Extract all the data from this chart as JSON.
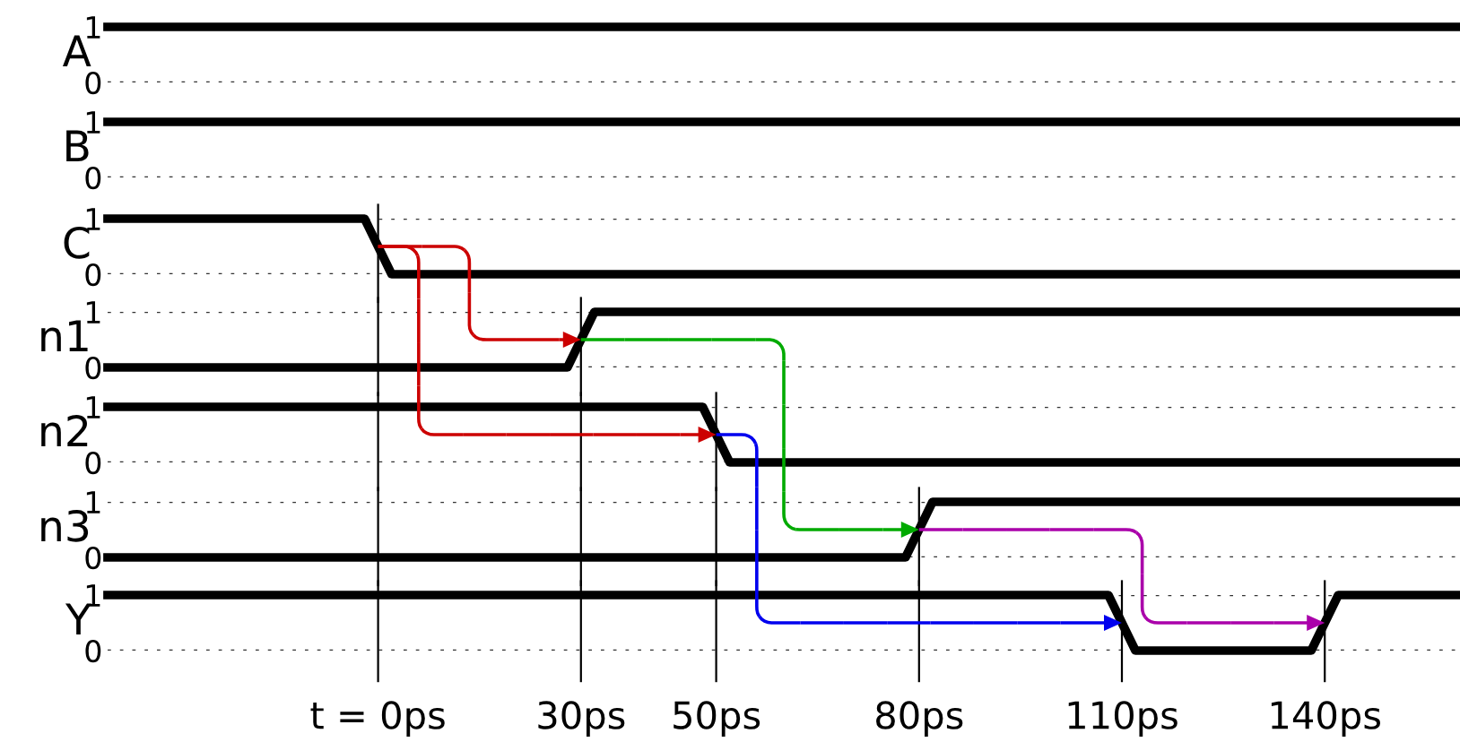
{
  "chart_data": [
    {
      "type": "line",
      "ylabel": "A",
      "x": [
        -40,
        160
      ],
      "series": [
        {
          "color": "#000000",
          "values": [
            1,
            1
          ]
        }
      ],
      "xlim": [
        -40,
        160
      ],
      "ylim": [
        0,
        1
      ],
      "yticks": [
        0,
        1
      ],
      "ref_lines": [
        {
          "axis": "y",
          "value": 0,
          "line_style": "dotted"
        }
      ],
      "tick_labels": "y",
      "marker": "none",
      "line_style": "solid"
    },
    {
      "type": "line",
      "ylabel": "B",
      "x": [
        -40,
        160
      ],
      "series": [
        {
          "color": "#000000",
          "values": [
            1,
            1
          ]
        }
      ],
      "xlim": [
        -40,
        160
      ],
      "ylim": [
        0,
        1
      ],
      "yticks": [
        0,
        1
      ],
      "ref_lines": [
        {
          "axis": "y",
          "value": 0,
          "line_style": "dotted"
        }
      ],
      "tick_labels": "y",
      "marker": "none",
      "line_style": "solid"
    },
    {
      "type": "line",
      "ylabel": "C",
      "x": [
        -40,
        -2,
        2,
        160
      ],
      "series": [
        {
          "color": "#000000",
          "values": [
            1,
            1,
            0,
            0
          ]
        }
      ],
      "xlim": [
        -40,
        160
      ],
      "ylim": [
        0,
        1
      ],
      "yticks": [
        0,
        1
      ],
      "grid": "y",
      "tick_labels": "y",
      "marker": "none",
      "line_style": "solid",
      "ref_lines": [
        {
          "axis": "x",
          "value": 0
        }
      ]
    },
    {
      "type": "line",
      "ylabel": "n1",
      "x": [
        -40,
        28,
        32,
        160
      ],
      "series": [
        {
          "color": "#000000",
          "values": [
            0,
            0,
            1,
            1
          ]
        }
      ],
      "xlim": [
        -40,
        160
      ],
      "ylim": [
        0,
        1
      ],
      "yticks": [
        0,
        1
      ],
      "grid": "y",
      "tick_labels": "y",
      "marker": "none",
      "line_style": "solid",
      "ref_lines": [
        {
          "axis": "x",
          "value": 0
        },
        {
          "axis": "x",
          "value": 30
        }
      ]
    },
    {
      "type": "line",
      "ylabel": "n2",
      "x": [
        -40,
        48,
        52,
        160
      ],
      "series": [
        {
          "color": "#000000",
          "values": [
            1,
            1,
            0,
            0
          ]
        }
      ],
      "xlim": [
        -40,
        160
      ],
      "ylim": [
        0,
        1
      ],
      "yticks": [
        0,
        1
      ],
      "grid": "y",
      "tick_labels": "y",
      "marker": "none",
      "line_style": "solid",
      "ref_lines": [
        {
          "axis": "x",
          "value": 0
        },
        {
          "axis": "x",
          "value": 30
        },
        {
          "axis": "x",
          "value": 50
        }
      ]
    },
    {
      "type": "line",
      "ylabel": "n3",
      "x": [
        -40,
        78,
        82,
        160
      ],
      "series": [
        {
          "color": "#000000",
          "values": [
            0,
            0,
            1,
            1
          ]
        }
      ],
      "xlim": [
        -40,
        160
      ],
      "ylim": [
        0,
        1
      ],
      "yticks": [
        0,
        1
      ],
      "grid": "y",
      "tick_labels": "y",
      "marker": "none",
      "line_style": "solid",
      "ref_lines": [
        {
          "axis": "x",
          "value": 0
        },
        {
          "axis": "x",
          "value": 30
        },
        {
          "axis": "x",
          "value": 50
        },
        {
          "axis": "x",
          "value": 80
        }
      ]
    },
    {
      "type": "line",
      "ylabel": "Y",
      "x": [
        -40,
        108,
        112,
        138,
        142,
        160
      ],
      "series": [
        {
          "color": "#000000",
          "values": [
            1,
            1,
            0,
            0,
            1,
            1
          ]
        }
      ],
      "xlim": [
        -40,
        160
      ],
      "ylim": [
        0,
        1
      ],
      "yticks": [
        0,
        1
      ],
      "xticks": [
        {
          "value": 0,
          "label": "t = 0ps"
        },
        {
          "value": 30,
          "label": "30ps"
        },
        {
          "value": 50,
          "label": "50ps"
        },
        {
          "value": 80,
          "label": "80ps"
        },
        {
          "value": 110,
          "label": "110ps"
        },
        {
          "value": 140,
          "label": "140ps"
        }
      ],
      "grid": "y",
      "marker": "none",
      "line_style": "solid",
      "ref_lines": [
        {
          "axis": "x",
          "value": 0
        },
        {
          "axis": "x",
          "value": 30
        },
        {
          "axis": "x",
          "value": 50
        },
        {
          "axis": "x",
          "value": 80
        },
        {
          "axis": "x",
          "value": 110
        },
        {
          "axis": "x",
          "value": 140
        }
      ]
    }
  ]
}
